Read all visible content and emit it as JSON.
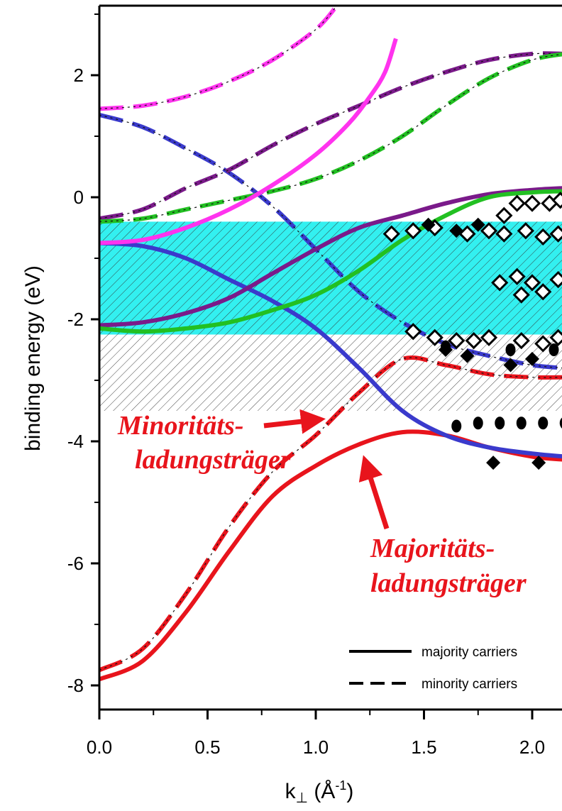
{
  "chart_data": {
    "type": "line",
    "title": "",
    "xlabel": "k",
    "xlabel_sub": "⊥",
    "xlabel_unit_open": " (Å",
    "xlabel_unit_sup": "-1",
    "xlabel_unit_close": ")",
    "ylabel": "binding energy (eV)",
    "xlim": [
      0.0,
      2.15
    ],
    "ylim": [
      -8.55,
      3.15
    ],
    "x_ticks": [
      {
        "value": 0.0,
        "label": "0.0"
      },
      {
        "value": 0.5,
        "label": "0.5"
      },
      {
        "value": 1.0,
        "label": "1.0"
      },
      {
        "value": 1.5,
        "label": "1.5"
      },
      {
        "value": 2.0,
        "label": "2.0"
      }
    ],
    "y_ticks": [
      {
        "value": 2,
        "label": "2"
      },
      {
        "value": 0,
        "label": "0"
      },
      {
        "value": -2,
        "label": "-2"
      },
      {
        "value": -4,
        "label": "-4"
      },
      {
        "value": -6,
        "label": "-6"
      },
      {
        "value": -8,
        "label": "-8"
      }
    ],
    "grid": false,
    "bands": [
      {
        "kind": "cyan-hatched",
        "y_top": -0.4,
        "y_bottom": -2.25,
        "color": "#33f0f0"
      },
      {
        "kind": "gray-hatched",
        "y_top": -2.25,
        "y_bottom": -3.5,
        "color": "#ffffff"
      }
    ],
    "legend": {
      "placement": "bottom-right",
      "entries": [
        {
          "label": "majority carriers",
          "style": "solid"
        },
        {
          "label": "minority carriers",
          "style": "dashed"
        }
      ]
    },
    "series": [
      {
        "style": "solid",
        "color": "#e8141c",
        "points": [
          [
            0.0,
            -7.9
          ],
          [
            0.2,
            -7.6
          ],
          [
            0.4,
            -6.8
          ],
          [
            0.6,
            -5.8
          ],
          [
            0.8,
            -4.9
          ],
          [
            1.0,
            -4.4
          ],
          [
            1.2,
            -4.05
          ],
          [
            1.4,
            -3.85
          ],
          [
            1.6,
            -3.9
          ],
          [
            1.8,
            -4.1
          ],
          [
            2.0,
            -4.25
          ],
          [
            2.15,
            -4.3
          ]
        ]
      },
      {
        "style": "dashed",
        "color": "#e8141c",
        "points": [
          [
            0.0,
            -7.75
          ],
          [
            0.2,
            -7.4
          ],
          [
            0.4,
            -6.5
          ],
          [
            0.6,
            -5.4
          ],
          [
            0.8,
            -4.5
          ],
          [
            1.0,
            -3.9
          ],
          [
            1.2,
            -3.2
          ],
          [
            1.4,
            -2.65
          ],
          [
            1.6,
            -2.75
          ],
          [
            1.8,
            -2.9
          ],
          [
            2.0,
            -2.95
          ],
          [
            2.15,
            -2.95
          ]
        ]
      },
      {
        "style": "solid",
        "color": "#3a3acc",
        "points": [
          [
            0.0,
            -0.75
          ],
          [
            0.2,
            -0.8
          ],
          [
            0.4,
            -1.0
          ],
          [
            0.6,
            -1.35
          ],
          [
            0.8,
            -1.7
          ],
          [
            1.0,
            -2.15
          ],
          [
            1.2,
            -2.8
          ],
          [
            1.4,
            -3.5
          ],
          [
            1.6,
            -3.9
          ],
          [
            1.8,
            -4.1
          ],
          [
            2.0,
            -4.2
          ],
          [
            2.15,
            -4.25
          ]
        ]
      },
      {
        "style": "dashed",
        "color": "#3a3acc",
        "points": [
          [
            0.0,
            1.35
          ],
          [
            0.2,
            1.15
          ],
          [
            0.4,
            0.8
          ],
          [
            0.6,
            0.4
          ],
          [
            0.8,
            -0.15
          ],
          [
            1.0,
            -0.85
          ],
          [
            1.2,
            -1.55
          ],
          [
            1.4,
            -2.05
          ],
          [
            1.6,
            -2.4
          ],
          [
            1.8,
            -2.6
          ],
          [
            2.0,
            -2.75
          ],
          [
            2.15,
            -2.8
          ]
        ]
      },
      {
        "style": "solid",
        "color": "#7a1a8a",
        "points": [
          [
            0.0,
            -2.1
          ],
          [
            0.2,
            -2.05
          ],
          [
            0.4,
            -1.9
          ],
          [
            0.6,
            -1.65
          ],
          [
            0.8,
            -1.25
          ],
          [
            1.0,
            -0.85
          ],
          [
            1.2,
            -0.5
          ],
          [
            1.4,
            -0.3
          ],
          [
            1.6,
            -0.1
          ],
          [
            1.8,
            0.05
          ],
          [
            2.0,
            0.12
          ],
          [
            2.15,
            0.15
          ]
        ]
      },
      {
        "style": "dashed",
        "color": "#7a1a8a",
        "points": [
          [
            0.0,
            -0.35
          ],
          [
            0.2,
            -0.2
          ],
          [
            0.4,
            0.15
          ],
          [
            0.6,
            0.45
          ],
          [
            0.8,
            0.85
          ],
          [
            1.0,
            1.2
          ],
          [
            1.2,
            1.5
          ],
          [
            1.4,
            1.8
          ],
          [
            1.6,
            2.05
          ],
          [
            1.8,
            2.25
          ],
          [
            2.0,
            2.35
          ],
          [
            2.15,
            2.35
          ]
        ]
      },
      {
        "style": "solid",
        "color": "#22c022",
        "points": [
          [
            0.0,
            -2.15
          ],
          [
            0.2,
            -2.2
          ],
          [
            0.4,
            -2.15
          ],
          [
            0.6,
            -2.05
          ],
          [
            0.8,
            -1.85
          ],
          [
            1.0,
            -1.6
          ],
          [
            1.2,
            -1.2
          ],
          [
            1.4,
            -0.7
          ],
          [
            1.6,
            -0.3
          ],
          [
            1.8,
            0.0
          ],
          [
            2.0,
            0.08
          ],
          [
            2.15,
            0.1
          ]
        ]
      },
      {
        "style": "dashed",
        "color": "#22c022",
        "points": [
          [
            0.0,
            -0.4
          ],
          [
            0.2,
            -0.35
          ],
          [
            0.4,
            -0.2
          ],
          [
            0.6,
            -0.05
          ],
          [
            0.8,
            0.1
          ],
          [
            1.0,
            0.3
          ],
          [
            1.2,
            0.6
          ],
          [
            1.4,
            1.0
          ],
          [
            1.6,
            1.5
          ],
          [
            1.8,
            1.95
          ],
          [
            2.0,
            2.25
          ],
          [
            2.15,
            2.35
          ]
        ]
      },
      {
        "style": "solid",
        "color": "#ff33ee",
        "points": [
          [
            0.0,
            -0.75
          ],
          [
            0.2,
            -0.7
          ],
          [
            0.4,
            -0.5
          ],
          [
            0.6,
            -0.2
          ],
          [
            0.8,
            0.2
          ],
          [
            1.0,
            0.7
          ],
          [
            1.15,
            1.2
          ],
          [
            1.25,
            1.65
          ],
          [
            1.32,
            2.05
          ],
          [
            1.37,
            2.6
          ]
        ]
      },
      {
        "style": "dashed",
        "color": "#ff33ee",
        "points": [
          [
            0.0,
            1.45
          ],
          [
            0.2,
            1.5
          ],
          [
            0.4,
            1.65
          ],
          [
            0.6,
            1.9
          ],
          [
            0.8,
            2.25
          ],
          [
            1.0,
            2.75
          ],
          [
            1.1,
            3.15
          ]
        ]
      }
    ],
    "markers": {
      "open_diamonds": [
        [
          1.35,
          -0.6
        ],
        [
          1.45,
          -0.55
        ],
        [
          1.55,
          -0.5
        ],
        [
          1.7,
          -0.6
        ],
        [
          1.8,
          -0.55
        ],
        [
          1.87,
          -0.3
        ],
        [
          1.93,
          -0.1
        ],
        [
          2.0,
          -0.1
        ],
        [
          2.08,
          -0.1
        ],
        [
          2.13,
          -0.05
        ],
        [
          1.87,
          -0.6
        ],
        [
          1.97,
          -0.55
        ],
        [
          2.05,
          -0.65
        ],
        [
          2.12,
          -0.6
        ],
        [
          1.85,
          -1.4
        ],
        [
          1.93,
          -1.3
        ],
        [
          2.0,
          -1.4
        ],
        [
          1.95,
          -1.6
        ],
        [
          2.05,
          -1.55
        ],
        [
          2.12,
          -1.35
        ],
        [
          1.45,
          -2.2
        ],
        [
          1.55,
          -2.3
        ],
        [
          1.65,
          -2.35
        ],
        [
          1.73,
          -2.35
        ],
        [
          1.8,
          -2.3
        ],
        [
          1.95,
          -2.35
        ],
        [
          2.05,
          -2.4
        ],
        [
          2.12,
          -2.3
        ]
      ],
      "filled_diamonds": [
        [
          1.52,
          -0.45
        ],
        [
          1.65,
          -0.55
        ],
        [
          1.75,
          -0.45
        ],
        [
          1.6,
          -2.5
        ],
        [
          1.7,
          -2.6
        ],
        [
          1.9,
          -2.75
        ],
        [
          2.0,
          -2.65
        ],
        [
          1.82,
          -4.35
        ],
        [
          2.03,
          -4.35
        ]
      ],
      "filled_circles": [
        [
          1.6,
          -2.45
        ],
        [
          1.9,
          -2.5
        ],
        [
          2.1,
          -2.5
        ],
        [
          1.65,
          -3.75
        ],
        [
          1.75,
          -3.7
        ],
        [
          1.85,
          -3.7
        ],
        [
          1.95,
          -3.7
        ],
        [
          2.05,
          -3.7
        ],
        [
          2.15,
          -3.7
        ]
      ]
    },
    "annotations": [
      {
        "lines": [
          "Minoritäts-",
          "ladungsträger"
        ],
        "points_to": [
          1.05,
          -3.8
        ],
        "color": "#e8141c"
      },
      {
        "lines": [
          "Majoritäts-",
          "ladungsträger"
        ],
        "points_to": [
          1.22,
          -4.15
        ],
        "color": "#e8141c"
      }
    ]
  }
}
